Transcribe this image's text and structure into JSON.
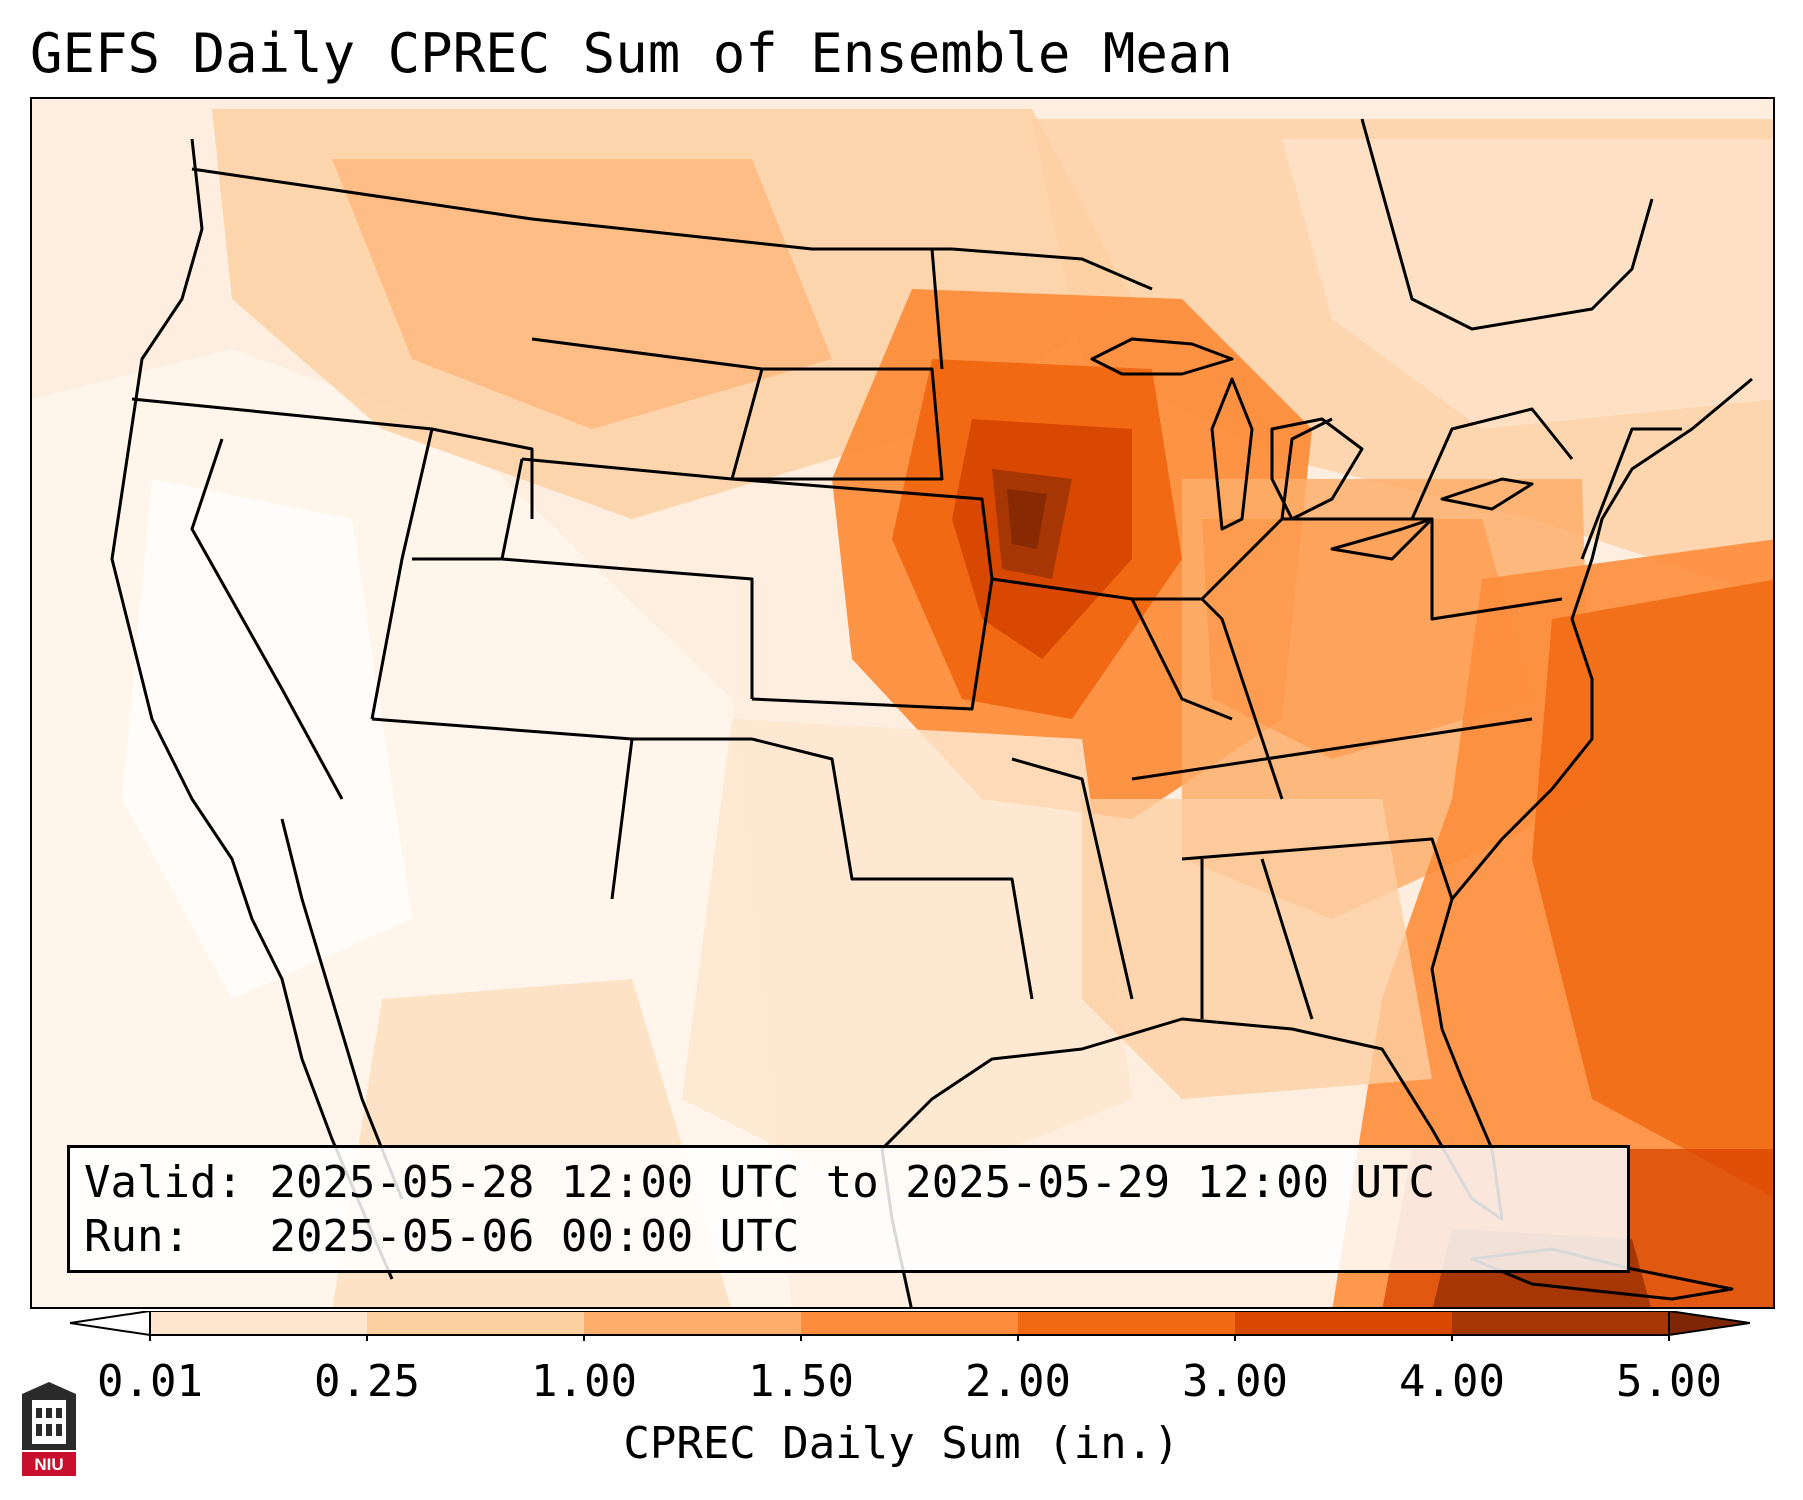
{
  "title": "GEFS Daily CPREC Sum of Ensemble Mean",
  "info": {
    "valid_label": "Valid:",
    "valid_value": "2025-05-28 12:00 UTC to 2025-05-29 12:00 UTC",
    "run_label": "Run:",
    "run_value": "2025-05-06 00:00 UTC"
  },
  "colorbar": {
    "label": "CPREC Daily Sum (in.)",
    "ticks": [
      "0.01",
      "0.25",
      "1.00",
      "1.50",
      "2.00",
      "3.00",
      "4.00",
      "5.00"
    ],
    "colors": [
      "#fff5eb",
      "#fee6ce",
      "#fdd0a2",
      "#fdae6b",
      "#fd8d3c",
      "#f16913",
      "#d94801",
      "#a63603",
      "#7f2704"
    ]
  },
  "logo": {
    "text": "NIU",
    "name": "niu-logo"
  }
}
